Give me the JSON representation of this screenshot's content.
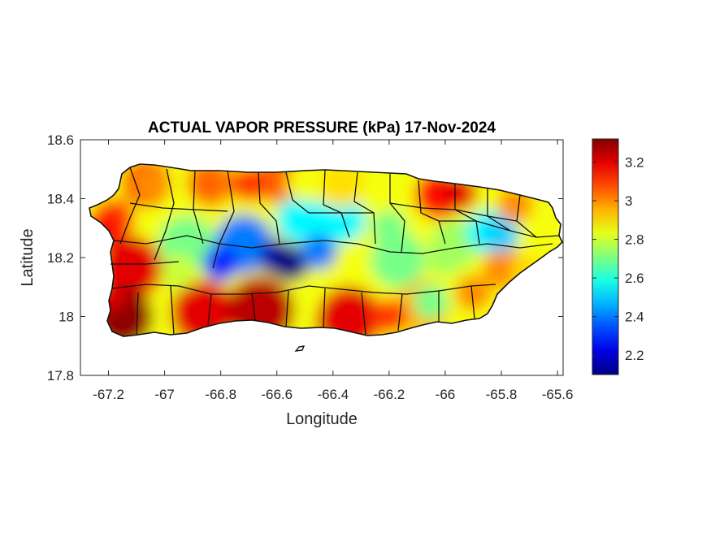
{
  "chart_data": {
    "type": "heatmap",
    "title": "ACTUAL VAPOR PRESSURE (kPa) 17-Nov-2024",
    "xlabel": "Longitude",
    "ylabel": "Latitude",
    "xlim": [
      -67.3,
      -65.58
    ],
    "ylim": [
      17.8,
      18.6
    ],
    "x_ticks": [
      -67.2,
      -67,
      -66.8,
      -66.6,
      -66.4,
      -66.2,
      -66,
      -65.8,
      -65.6
    ],
    "x_tick_labels": [
      "-67.2",
      "-67",
      "-66.8",
      "-66.6",
      "-66.4",
      "-66.2",
      "-66",
      "-65.8",
      "-65.6"
    ],
    "y_ticks": [
      17.8,
      18,
      18.2,
      18.4,
      18.6
    ],
    "y_tick_labels": [
      "17.8",
      "18",
      "18.2",
      "18.4",
      "18.6"
    ],
    "colorbar": {
      "colormap": "jet",
      "range": [
        2.1,
        3.32
      ],
      "ticks": [
        2.2,
        2.4,
        2.6,
        2.8,
        3,
        3.2
      ],
      "tick_labels": [
        "2.2",
        "2.4",
        "2.6",
        "2.8",
        "3",
        "3.2"
      ],
      "location": "right"
    },
    "grid": false,
    "field_samples": [
      {
        "lon": -67.2,
        "lat": 18.05,
        "value": 3.2
      },
      {
        "lon": -67.15,
        "lat": 17.98,
        "value": 3.3
      },
      {
        "lon": -67.22,
        "lat": 18.3,
        "value": 3.15
      },
      {
        "lon": -67.05,
        "lat": 18.45,
        "value": 3.0
      },
      {
        "lon": -66.95,
        "lat": 18.15,
        "value": 2.8
      },
      {
        "lon": -66.8,
        "lat": 18.18,
        "value": 2.3
      },
      {
        "lon": -66.6,
        "lat": 18.2,
        "value": 2.15
      },
      {
        "lon": -66.55,
        "lat": 18.18,
        "value": 2.1
      },
      {
        "lon": -66.45,
        "lat": 18.22,
        "value": 2.4
      },
      {
        "lon": -66.6,
        "lat": 18.02,
        "value": 3.25
      },
      {
        "lon": -66.4,
        "lat": 17.98,
        "value": 3.2
      },
      {
        "lon": -66.2,
        "lat": 18.0,
        "value": 3.1
      },
      {
        "lon": -66.5,
        "lat": 18.45,
        "value": 2.85
      },
      {
        "lon": -66.7,
        "lat": 18.45,
        "value": 3.1
      },
      {
        "lon": -66.85,
        "lat": 18.45,
        "value": 3.05
      },
      {
        "lon": -66.2,
        "lat": 18.3,
        "value": 2.7
      },
      {
        "lon": -66.0,
        "lat": 18.2,
        "value": 2.75
      },
      {
        "lon": -65.95,
        "lat": 18.42,
        "value": 3.2
      },
      {
        "lon": -65.8,
        "lat": 18.28,
        "value": 2.5
      },
      {
        "lon": -65.75,
        "lat": 18.38,
        "value": 3.0
      },
      {
        "lon": -65.7,
        "lat": 18.15,
        "value": 2.9
      },
      {
        "lon": -65.9,
        "lat": 18.08,
        "value": 3.0
      },
      {
        "lon": -66.05,
        "lat": 18.05,
        "value": 2.7
      }
    ]
  }
}
